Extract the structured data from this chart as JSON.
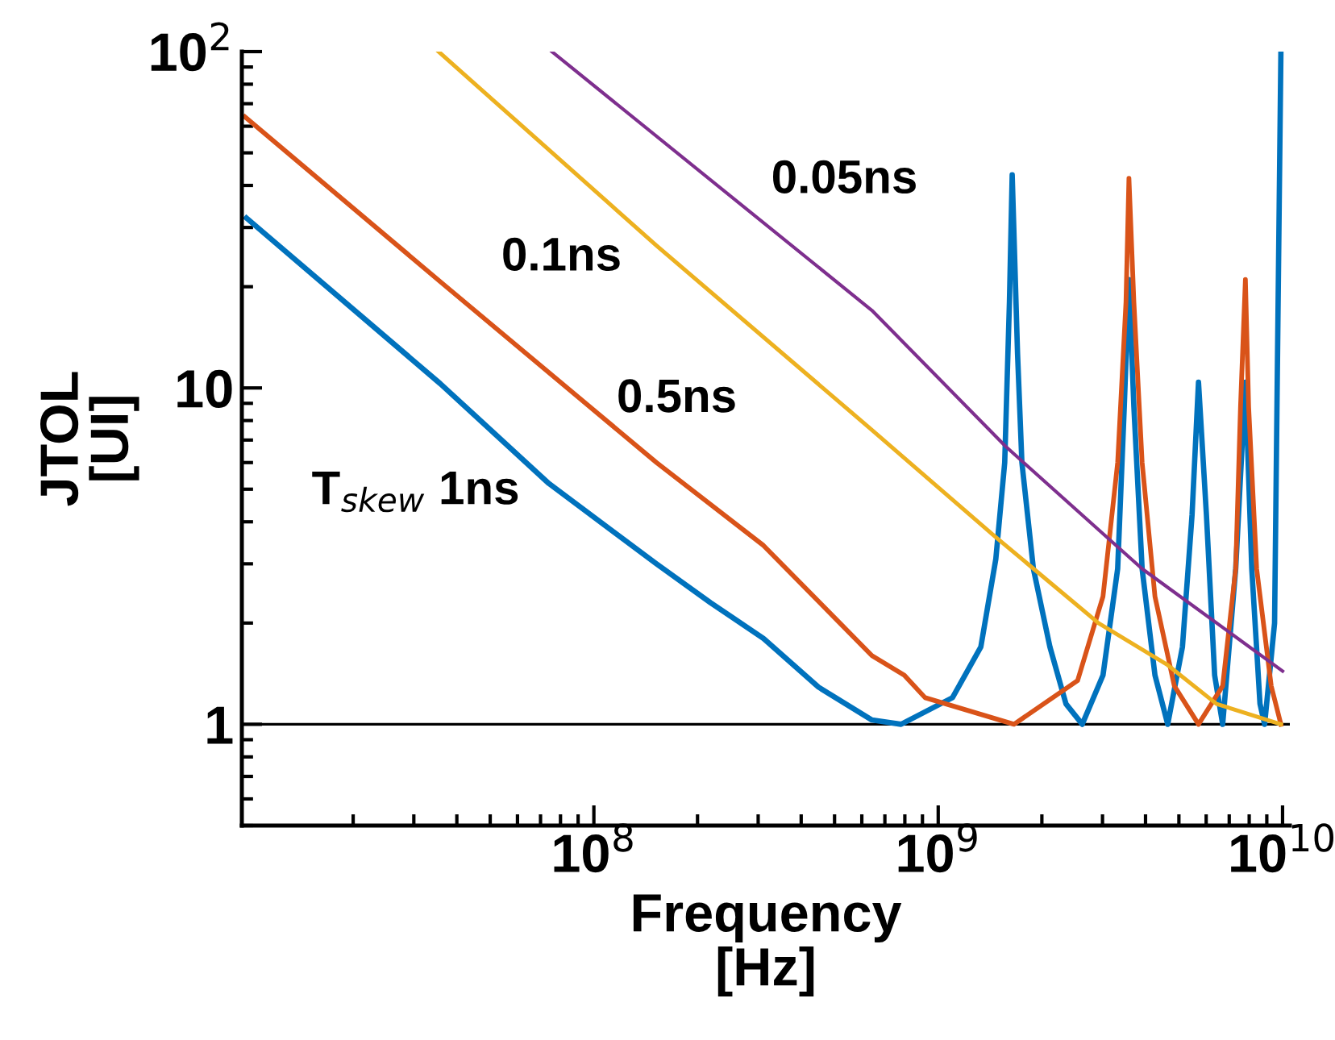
{
  "chart_data": {
    "type": "line",
    "xlabel": "Frequency\n[Hz]",
    "ylabel": "JTOL\n[UI]",
    "log": "xy",
    "grid": false,
    "legend": false,
    "marker": "none",
    "line_style": "solid",
    "xlim": [
      9500000.0,
      10500000000.0
    ],
    "xticks": [
      {
        "value": 100000000.0,
        "label": "10$^{8}$"
      },
      {
        "value": 1000000000.0,
        "label": "10$^{9}$"
      },
      {
        "value": 10000000000.0,
        "label": "10$^{10}$"
      }
    ],
    "ylim": [
      0.5,
      100
    ],
    "yticks": [
      1,
      10,
      {
        "value": 100,
        "label": "10$^{2}$"
      }
    ],
    "ref_lines": [
      {
        "axis": "y",
        "value": 1,
        "color": "#000000",
        "line_style": "solid"
      }
    ],
    "series": [
      {
        "name": "T$_{skew}$ 1ns",
        "color": "#0072bd",
        "x": [
          9800000.0,
          35800000.0,
          74000000.0,
          152000000.0,
          218000000.0,
          311000000.0,
          449000000.0,
          642000000.0,
          780000000.0,
          1100000000.0,
          1330000000.0,
          1470000000.0,
          1560000000.0,
          1610000000.0,
          1640000000.0,
          1700000000.0,
          1750000000.0,
          1890000000.0,
          2110000000.0,
          2350000000.0,
          2620000000.0,
          3010000000.0,
          3320000000.0,
          3470000000.0,
          3580000000.0,
          3700000000.0,
          3910000000.0,
          4260000000.0,
          4640000000.0,
          5120000000.0,
          5460000000.0,
          5700000000.0,
          6010000000.0,
          6350000000.0,
          6700000000.0,
          7310000000.0,
          7800000000.0,
          8140000000.0,
          8600000000.0,
          8870000000.0,
          9480000000.0,
          9890000000.0
        ],
        "values": [
          32,
          10.3,
          5.2,
          3.0,
          2.3,
          1.8,
          1.29,
          1.03,
          1.0,
          1.2,
          1.7,
          3.1,
          6.0,
          18,
          43,
          12.6,
          6.0,
          2.9,
          1.7,
          1.15,
          1.0,
          1.4,
          2.9,
          8.8,
          21,
          8.8,
          2.9,
          1.4,
          1.0,
          1.7,
          4.2,
          10.4,
          4.2,
          1.4,
          1.0,
          2.9,
          10.4,
          2.9,
          1.15,
          1.0,
          2.0,
          100
        ]
      },
      {
        "name": "0.5ns",
        "color": "#d95319",
        "x": [
          9700000.0,
          35800000.0,
          152000000.0,
          311000000.0,
          642000000.0,
          797000000.0,
          916000000.0,
          1660000000.0,
          2540000000.0,
          3010000000.0,
          3320000000.0,
          3510000000.0,
          3580000000.0,
          3700000000.0,
          3910000000.0,
          4260000000.0,
          4850000000.0,
          5700000000.0,
          6700000000.0,
          7310000000.0,
          7550000000.0,
          7800000000.0,
          7970000000.0,
          8410000000.0,
          9270000000.0,
          9890000000.0
        ],
        "values": [
          64,
          20.7,
          6.0,
          3.4,
          1.6,
          1.4,
          1.2,
          1.0,
          1.35,
          2.4,
          6.0,
          18,
          42,
          18,
          6.0,
          2.4,
          1.3,
          1.0,
          1.3,
          2.9,
          8.8,
          21,
          8.8,
          2.9,
          1.3,
          1.0
        ]
      },
      {
        "name": "0.1ns",
        "color": "#edb120",
        "x": [
          35400000.0,
          152000000.0,
          642000000.0,
          1470000000.0,
          2920000000.0,
          4640000000.0,
          6430000000.0,
          9890000000.0
        ],
        "values": [
          100,
          26.5,
          7.5,
          3.6,
          2.0,
          1.5,
          1.15,
          1.0
        ]
      },
      {
        "name": "0.05ns",
        "color": "#7e2f8e",
        "x": [
          75500000.0,
          642000000.0,
          1570000000.0,
          3910000000.0,
          10000000000.0
        ],
        "values": [
          100,
          17,
          6.7,
          2.9,
          1.44
        ]
      }
    ]
  }
}
